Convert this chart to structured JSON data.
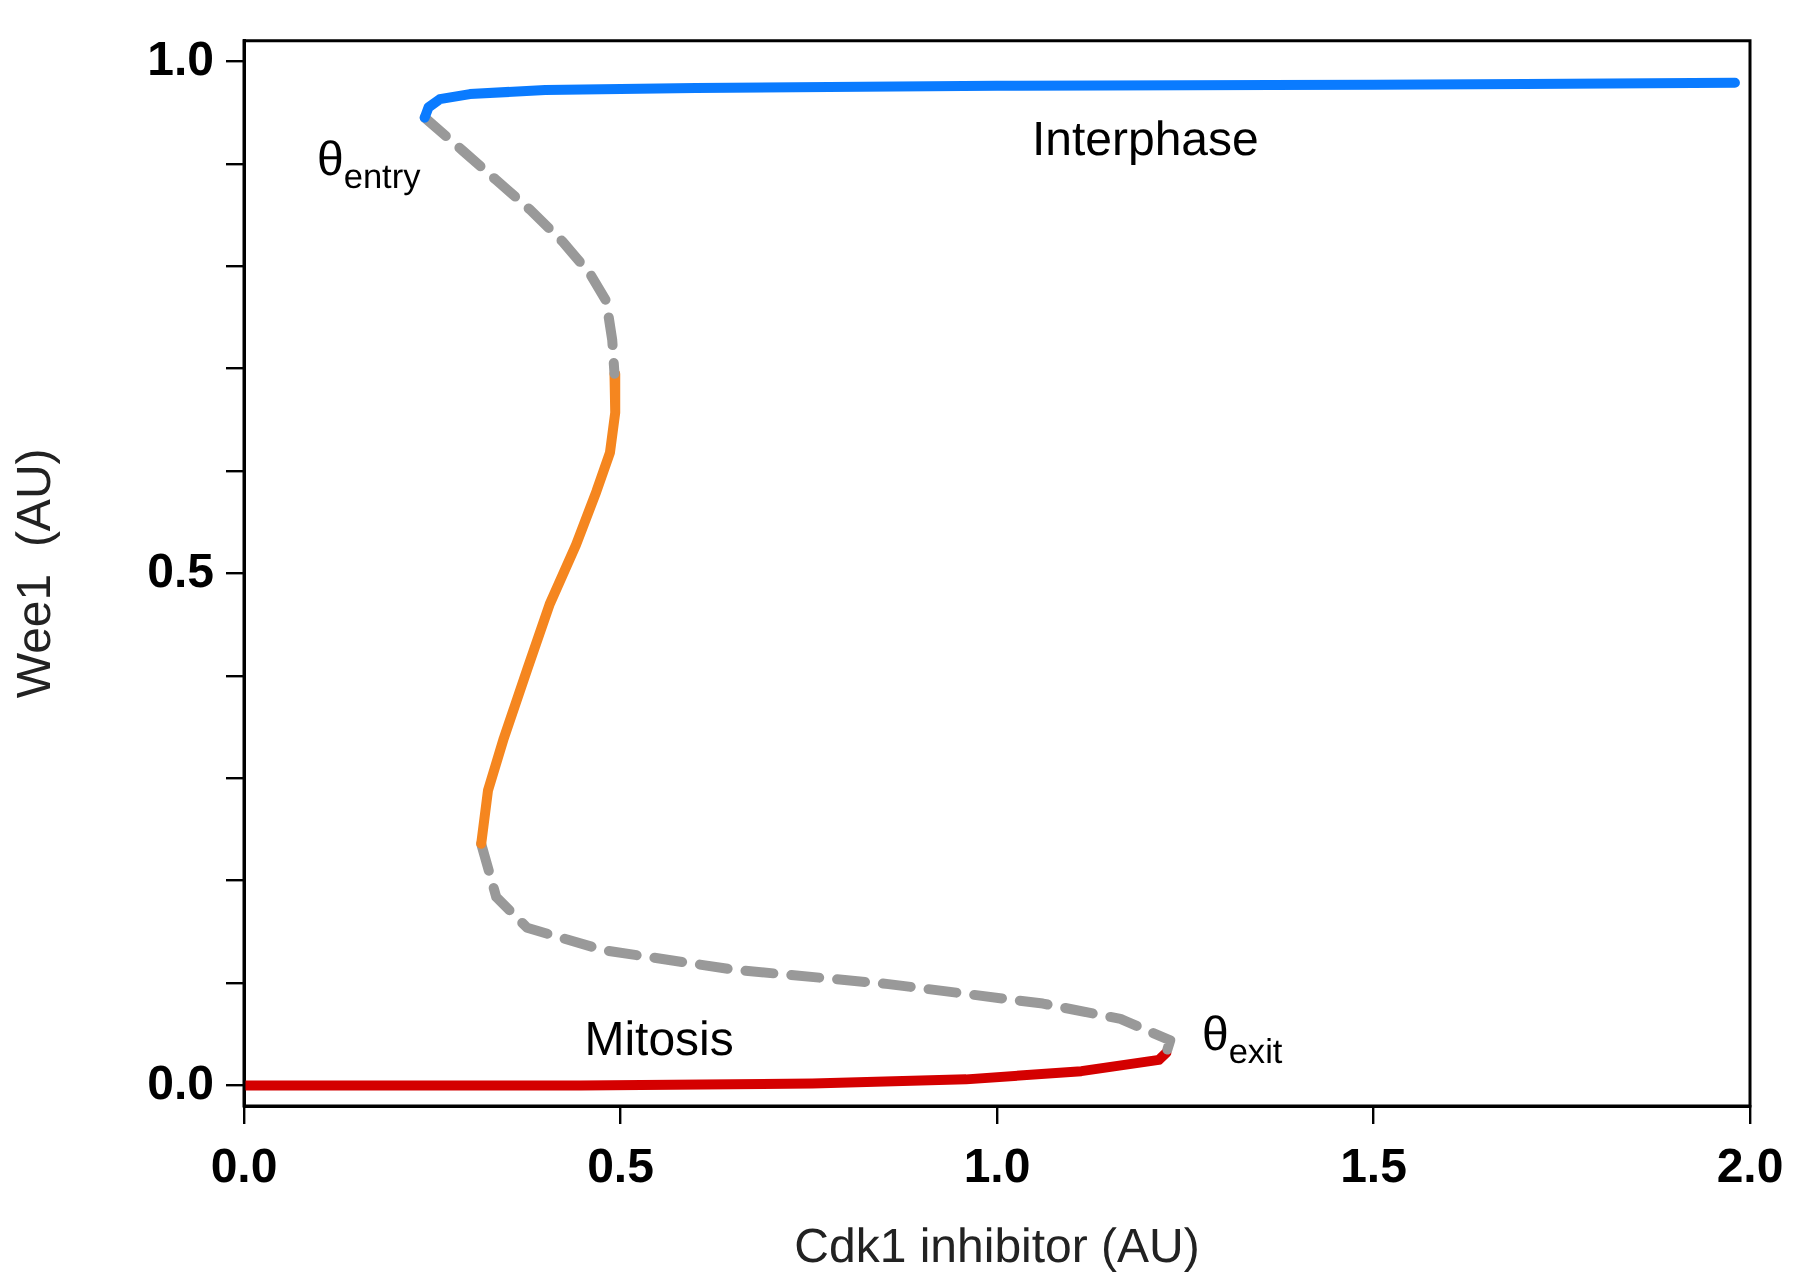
{
  "chart_data": {
    "type": "line",
    "xlabel": "Cdk1 inhibitor (AU)",
    "ylabel": "Wee1  (AU)",
    "marker": "none",
    "grid": false,
    "legend": false,
    "xlim": [
      0,
      2.0
    ],
    "ylim": [
      -0.02,
      1.02
    ],
    "xticks": [
      {
        "value": 0,
        "label": "0.0"
      },
      {
        "value": 0.5,
        "label": "0.5"
      },
      {
        "value": 1.0,
        "label": "1.0"
      },
      {
        "value": 1.5,
        "label": "1.5"
      },
      {
        "value": 2.0,
        "label": "2.0"
      }
    ],
    "yticks": [
      {
        "value": 0,
        "label": "0.0"
      },
      {
        "value": 0.1,
        "label": null
      },
      {
        "value": 0.2,
        "label": null
      },
      {
        "value": 0.3,
        "label": null
      },
      {
        "value": 0.4,
        "label": null
      },
      {
        "value": 0.5,
        "label": "0.5"
      },
      {
        "value": 0.6,
        "label": null
      },
      {
        "value": 0.7,
        "label": null
      },
      {
        "value": 0.8,
        "label": null
      },
      {
        "value": 0.9,
        "label": null
      },
      {
        "value": 1.0,
        "label": "1.0"
      }
    ],
    "series": [
      {
        "name": "Interphase",
        "color": "#0a7bff",
        "line_style": "solid",
        "x": [
          0.24,
          0.245,
          0.26,
          0.3,
          0.4,
          0.6,
          1.0,
          1.5,
          1.98
        ],
        "values": [
          0.945,
          0.955,
          0.963,
          0.968,
          0.972,
          0.974,
          0.976,
          0.977,
          0.979
        ]
      },
      {
        "color": "#999999",
        "line_style": "dashed",
        "x": [
          0.24,
          0.29,
          0.335,
          0.38,
          0.423,
          0.46,
          0.481,
          0.489,
          0.492
        ],
        "values": [
          0.945,
          0.913,
          0.884,
          0.855,
          0.824,
          0.792,
          0.766,
          0.728,
          0.695
        ]
      },
      {
        "color": "#f5861f",
        "line_style": "solid",
        "x": [
          0.492,
          0.493,
          0.486,
          0.468,
          0.441,
          0.406,
          0.376,
          0.345,
          0.324,
          0.315
        ],
        "values": [
          0.695,
          0.657,
          0.618,
          0.58,
          0.528,
          0.47,
          0.406,
          0.339,
          0.288,
          0.236
        ]
      },
      {
        "color": "#999999",
        "line_style": "dashed",
        "x": [
          0.315,
          0.335,
          0.376,
          0.478,
          0.652,
          0.856,
          1.061,
          1.164,
          1.23,
          1.225
        ],
        "values": [
          0.236,
          0.184,
          0.154,
          0.132,
          0.113,
          0.099,
          0.08,
          0.065,
          0.044,
          0.032
        ]
      },
      {
        "name": "Mitosis",
        "color": "#d40000",
        "line_style": "solid",
        "x": [
          1.225,
          1.215,
          1.112,
          0.959,
          0.755,
          0.447,
          0
        ],
        "values": [
          0.032,
          0.025,
          0.014,
          0.006,
          0.002,
          0.0,
          0.0
        ]
      }
    ],
    "annotations": [
      "θ$_{entry}$",
      "θ$_{exit}$"
    ]
  }
}
